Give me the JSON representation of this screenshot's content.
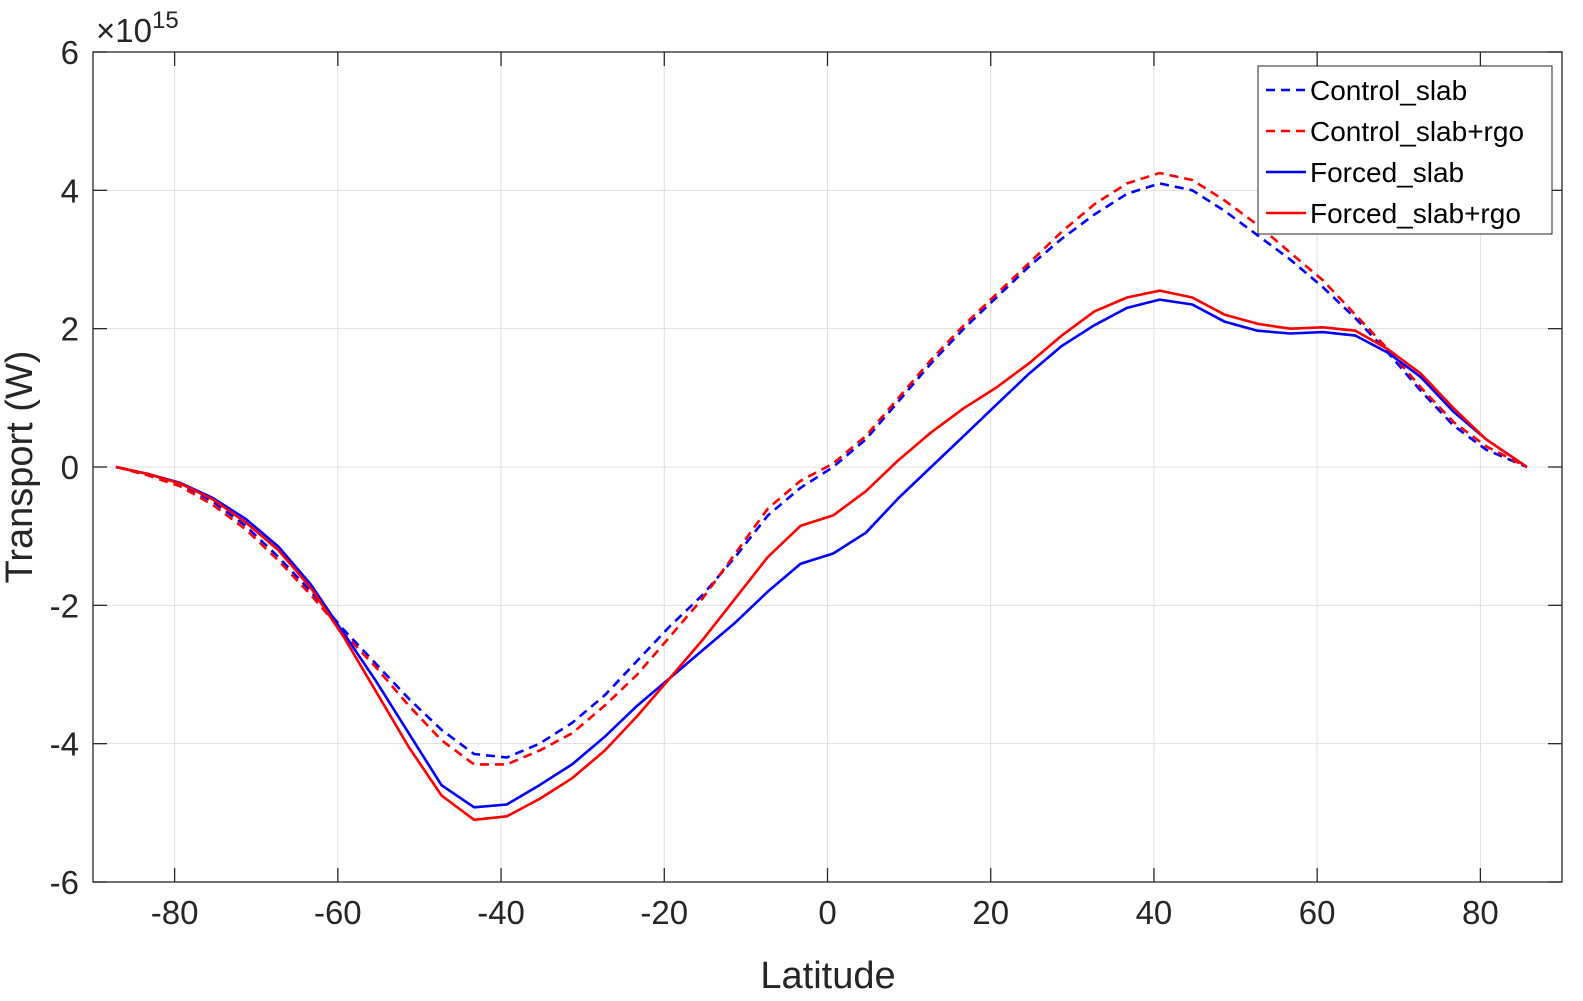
{
  "chart_data": {
    "type": "line",
    "xlabel": "Latitude",
    "ylabel": "Transport (W)",
    "exponent_label": {
      "base": "×10",
      "power": "15"
    },
    "xlim": [
      -90,
      90
    ],
    "ylim": [
      -6,
      6
    ],
    "y_display_scale": 1000000000000000.0,
    "grid": true,
    "legend_position": "top-right",
    "x_ticks": [
      -80,
      -60,
      -40,
      -20,
      0,
      20,
      40,
      60,
      80
    ],
    "x_tick_labels": [
      "-80",
      "-60",
      "-40",
      "-20",
      "0",
      "20",
      "40",
      "60",
      "80"
    ],
    "y_ticks": [
      -6,
      -4,
      -2,
      0,
      2,
      4,
      6
    ],
    "y_tick_labels": [
      "-6",
      "-4",
      "-2",
      "0",
      "2",
      "4",
      "6"
    ],
    "x": [
      -87.2,
      -83.3,
      -79.3,
      -75.3,
      -71.3,
      -67.3,
      -63.3,
      -59.3,
      -55.3,
      -51.3,
      -47.3,
      -43.3,
      -39.3,
      -35.3,
      -31.3,
      -27.3,
      -23.3,
      -19.3,
      -15.3,
      -11.3,
      -7.3,
      -3.3,
      0.7,
      4.7,
      8.7,
      12.7,
      16.7,
      20.7,
      24.7,
      28.7,
      32.7,
      36.7,
      40.7,
      44.7,
      48.7,
      52.7,
      56.7,
      60.7,
      64.7,
      68.7,
      72.7,
      76.7,
      80.7,
      85.7
    ],
    "series": [
      {
        "name": "Control_slab",
        "color": "#0000ff",
        "dash": "dashed",
        "values": [
          0,
          -0.1,
          -0.25,
          -0.5,
          -0.85,
          -1.3,
          -1.8,
          -2.35,
          -2.85,
          -3.35,
          -3.8,
          -4.15,
          -4.2,
          -4.0,
          -3.7,
          -3.3,
          -2.8,
          -2.3,
          -1.85,
          -1.3,
          -0.7,
          -0.3,
          0.0,
          0.4,
          0.95,
          1.5,
          2.0,
          2.45,
          2.9,
          3.3,
          3.65,
          3.95,
          4.1,
          4.0,
          3.7,
          3.35,
          3.0,
          2.6,
          2.15,
          1.65,
          1.1,
          0.6,
          0.25,
          0.0
        ]
      },
      {
        "name": "Control_slab+rgo",
        "color": "#ff0000",
        "dash": "dashed",
        "values": [
          0,
          -0.12,
          -0.28,
          -0.55,
          -0.9,
          -1.35,
          -1.85,
          -2.4,
          -2.9,
          -3.45,
          -3.95,
          -4.3,
          -4.3,
          -4.1,
          -3.85,
          -3.45,
          -3.0,
          -2.45,
          -1.9,
          -1.25,
          -0.6,
          -0.2,
          0.05,
          0.45,
          1.0,
          1.55,
          2.05,
          2.5,
          2.95,
          3.4,
          3.8,
          4.1,
          4.25,
          4.15,
          3.85,
          3.5,
          3.1,
          2.7,
          2.2,
          1.7,
          1.15,
          0.65,
          0.3,
          0.0
        ]
      },
      {
        "name": "Forced_slab",
        "color": "#0000ff",
        "dash": "solid",
        "values": [
          0,
          -0.1,
          -0.23,
          -0.45,
          -0.75,
          -1.15,
          -1.7,
          -2.4,
          -3.1,
          -3.85,
          -4.6,
          -4.92,
          -4.88,
          -4.6,
          -4.3,
          -3.9,
          -3.45,
          -3.05,
          -2.65,
          -2.25,
          -1.8,
          -1.4,
          -1.25,
          -0.95,
          -0.45,
          0.0,
          0.45,
          0.9,
          1.35,
          1.75,
          2.05,
          2.3,
          2.42,
          2.35,
          2.1,
          1.97,
          1.93,
          1.95,
          1.9,
          1.65,
          1.3,
          0.8,
          0.4,
          0.0
        ]
      },
      {
        "name": "Forced_slab+rgo",
        "color": "#ff0000",
        "dash": "solid",
        "values": [
          0,
          -0.1,
          -0.24,
          -0.47,
          -0.8,
          -1.2,
          -1.75,
          -2.45,
          -3.25,
          -4.05,
          -4.75,
          -5.1,
          -5.05,
          -4.8,
          -4.5,
          -4.1,
          -3.6,
          -3.05,
          -2.5,
          -1.9,
          -1.3,
          -0.85,
          -0.7,
          -0.35,
          0.1,
          0.5,
          0.85,
          1.15,
          1.5,
          1.9,
          2.25,
          2.45,
          2.55,
          2.45,
          2.2,
          2.07,
          2.0,
          2.02,
          1.97,
          1.7,
          1.35,
          0.85,
          0.4,
          0.0
        ]
      }
    ]
  }
}
